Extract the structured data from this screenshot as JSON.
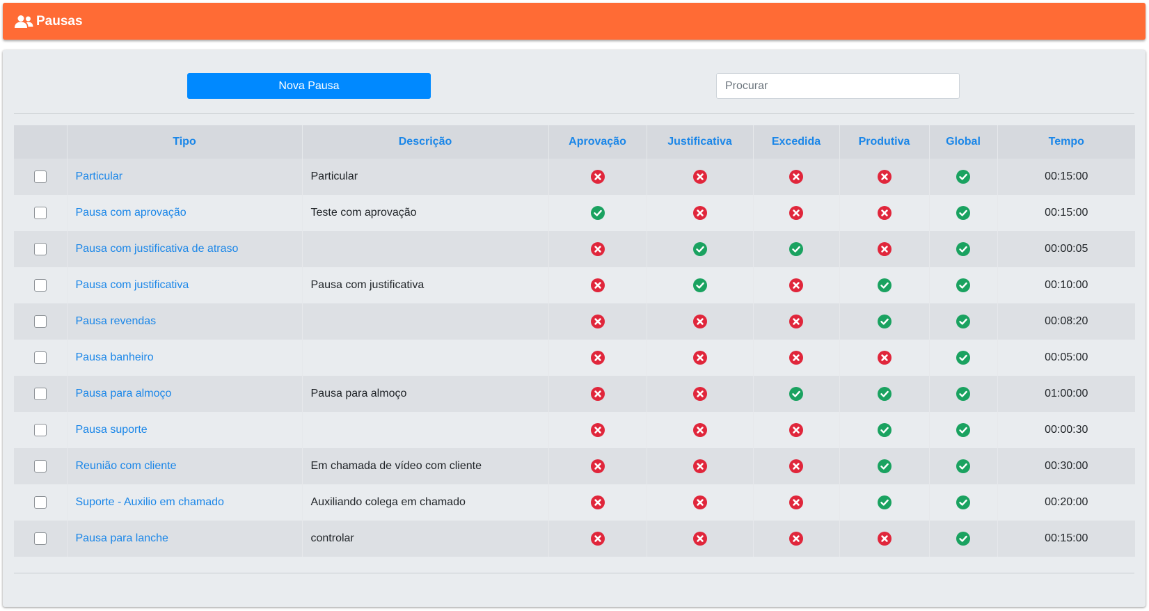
{
  "header": {
    "title": "Pausas",
    "icon": "users-icon"
  },
  "toolbar": {
    "new_label": "Nova Pausa",
    "search_placeholder": "Procurar",
    "search_value": ""
  },
  "colors": {
    "header": "#ff6b35",
    "primary": "#0089ff",
    "link": "#1a86e8",
    "yes": "#1aa260",
    "no": "#e0263b"
  },
  "table": {
    "columns": [
      "",
      "Tipo",
      "Descrição",
      "Aprovação",
      "Justificativa",
      "Excedida",
      "Produtiva",
      "Global",
      "Tempo"
    ],
    "rows": [
      {
        "tipo": "Particular",
        "descricao": "Particular",
        "aprovacao": false,
        "justificativa": false,
        "excedida": false,
        "produtiva": false,
        "global": true,
        "tempo": "00:15:00"
      },
      {
        "tipo": "Pausa com aprovação",
        "descricao": "Teste com aprovação",
        "aprovacao": true,
        "justificativa": false,
        "excedida": false,
        "produtiva": false,
        "global": true,
        "tempo": "00:15:00"
      },
      {
        "tipo": "Pausa com justificativa de atraso",
        "descricao": "",
        "aprovacao": false,
        "justificativa": true,
        "excedida": true,
        "produtiva": false,
        "global": true,
        "tempo": "00:00:05"
      },
      {
        "tipo": "Pausa com justificativa",
        "descricao": "Pausa com justificativa",
        "aprovacao": false,
        "justificativa": true,
        "excedida": false,
        "produtiva": true,
        "global": true,
        "tempo": "00:10:00"
      },
      {
        "tipo": "Pausa revendas",
        "descricao": "",
        "aprovacao": false,
        "justificativa": false,
        "excedida": false,
        "produtiva": true,
        "global": true,
        "tempo": "00:08:20"
      },
      {
        "tipo": "Pausa banheiro",
        "descricao": "",
        "aprovacao": false,
        "justificativa": false,
        "excedida": false,
        "produtiva": false,
        "global": true,
        "tempo": "00:05:00"
      },
      {
        "tipo": "Pausa para almoço",
        "descricao": "Pausa para almoço",
        "aprovacao": false,
        "justificativa": false,
        "excedida": true,
        "produtiva": true,
        "global": true,
        "tempo": "01:00:00"
      },
      {
        "tipo": "Pausa suporte",
        "descricao": "",
        "aprovacao": false,
        "justificativa": false,
        "excedida": false,
        "produtiva": true,
        "global": true,
        "tempo": "00:00:30"
      },
      {
        "tipo": "Reunião com cliente",
        "descricao": "Em chamada de vídeo com cliente",
        "aprovacao": false,
        "justificativa": false,
        "excedida": false,
        "produtiva": true,
        "global": true,
        "tempo": "00:30:00"
      },
      {
        "tipo": "Suporte - Auxilio em chamado",
        "descricao": "Auxiliando colega em chamado",
        "aprovacao": false,
        "justificativa": false,
        "excedida": false,
        "produtiva": true,
        "global": true,
        "tempo": "00:20:00"
      },
      {
        "tipo": "Pausa para lanche",
        "descricao": "controlar",
        "aprovacao": false,
        "justificativa": false,
        "excedida": false,
        "produtiva": false,
        "global": true,
        "tempo": "00:15:00"
      }
    ]
  }
}
